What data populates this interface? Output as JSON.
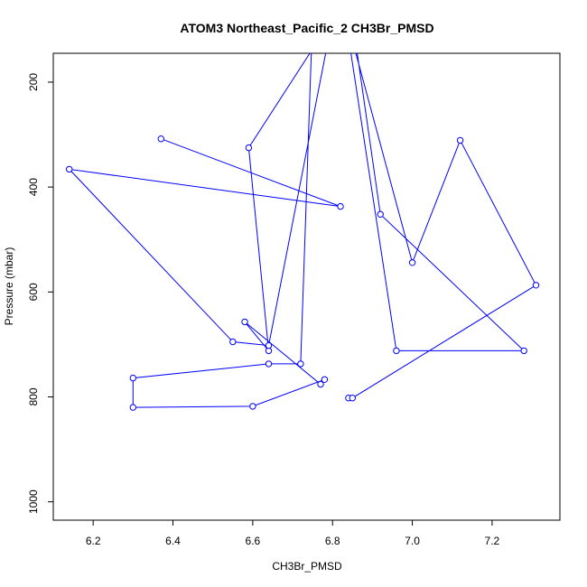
{
  "chart_data": {
    "type": "line",
    "title": "ATOM3 Northeast_Pacific_2 CH3Br_PMSD",
    "xlabel": "CH3Br_PMSD",
    "ylabel": "Pressure (mbar)",
    "xlim": [
      6.1,
      7.37
    ],
    "ylim": [
      1035,
      145
    ],
    "y_reversed": true,
    "xticks": [
      6.2,
      6.4,
      6.6,
      6.8,
      7.0,
      7.2
    ],
    "yticks": [
      200,
      400,
      600,
      800,
      1000
    ],
    "grid": false,
    "legend": "none",
    "color": "#0000ff",
    "series": [
      {
        "points": [
          [
            6.84,
            802
          ],
          [
            6.85,
            802
          ],
          [
            7.31,
            587
          ],
          [
            7.12,
            311
          ],
          [
            7.0,
            544
          ],
          [
            6.83,
            65
          ],
          [
            6.96,
            712
          ],
          [
            7.28,
            712
          ],
          [
            6.92,
            452
          ],
          [
            6.85,
            82
          ],
          [
            6.75,
            75
          ],
          [
            6.72,
            737
          ],
          [
            6.64,
            737
          ],
          [
            6.3,
            764
          ],
          [
            6.3,
            820
          ],
          [
            6.6,
            818
          ],
          [
            6.78,
            767
          ],
          [
            6.77,
            776
          ],
          [
            6.58,
            657
          ],
          [
            6.64,
            712
          ],
          [
            6.59,
            325
          ],
          [
            6.8,
            78
          ],
          [
            6.64,
            702
          ],
          [
            6.55,
            695
          ],
          [
            6.14,
            366
          ],
          [
            6.82,
            437
          ],
          [
            6.37,
            308
          ]
        ]
      }
    ]
  }
}
